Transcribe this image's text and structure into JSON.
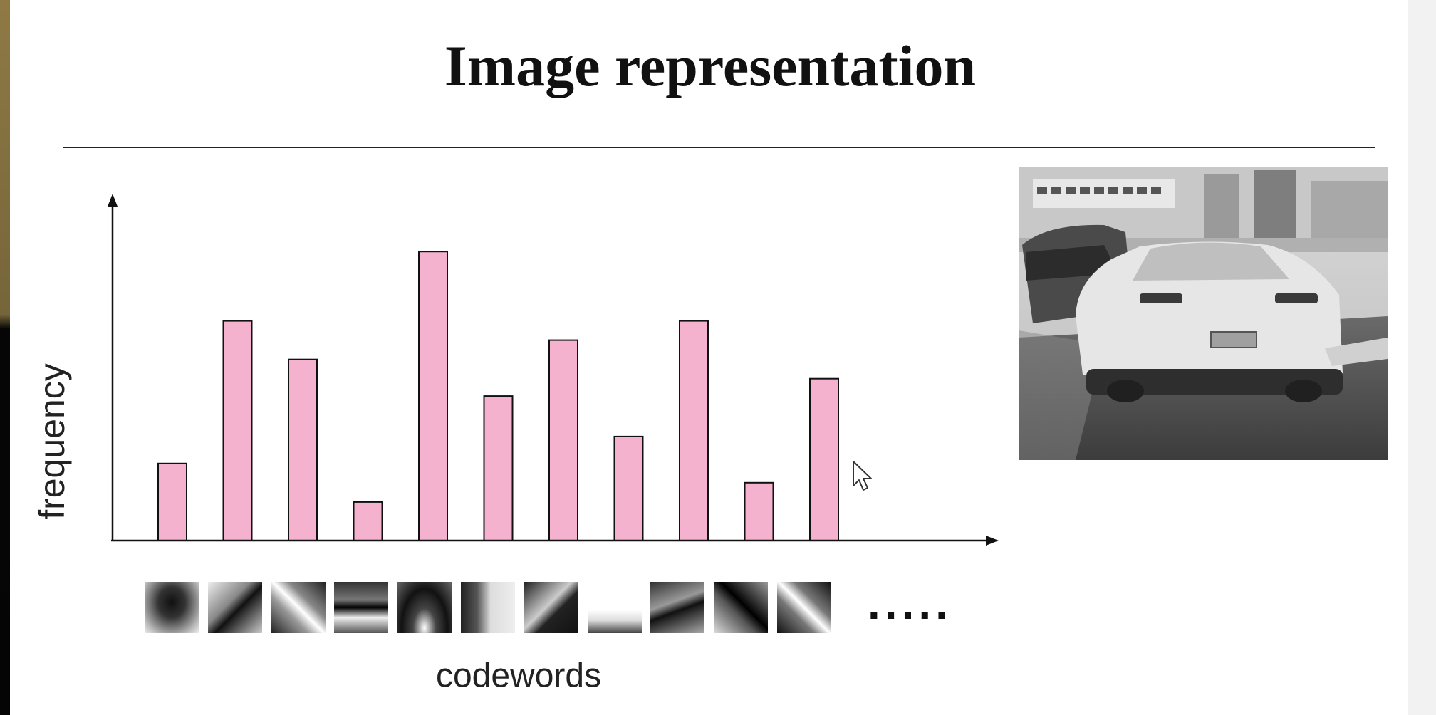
{
  "slide": {
    "title": "Image representation"
  },
  "chart_data": {
    "type": "bar",
    "title": "Image representation",
    "xlabel": "codewords",
    "ylabel": "frequency",
    "categories": [
      "",
      "",
      "",
      "",
      "",
      "",
      "",
      "",
      "",
      "",
      ""
    ],
    "values": [
      2.0,
      5.7,
      4.7,
      1.0,
      7.5,
      3.75,
      5.2,
      2.7,
      5.7,
      1.5,
      4.2
    ],
    "ylim": [
      0,
      9
    ],
    "grid": false,
    "legend": "none",
    "bar_color": "#f4b2cf",
    "x_axis_continues": "....."
  },
  "codeword_patches": [
    "dark-wedge-patch",
    "diagonal-edge-patch",
    "diagonal-stripe-patch",
    "horizontal-bar-patch",
    "dark-peak-patch",
    "vertical-edge-patch",
    "diagonal-light-patch",
    "bright-corner-patch",
    "dark-band-patch",
    "diagonal-dark-patch",
    "cross-diagonal-patch"
  ],
  "photo": {
    "subject": "grayscale-car-street-photo"
  },
  "colors": {
    "bar": "#f4b2cf",
    "axis": "#111111",
    "title": "#111111"
  }
}
